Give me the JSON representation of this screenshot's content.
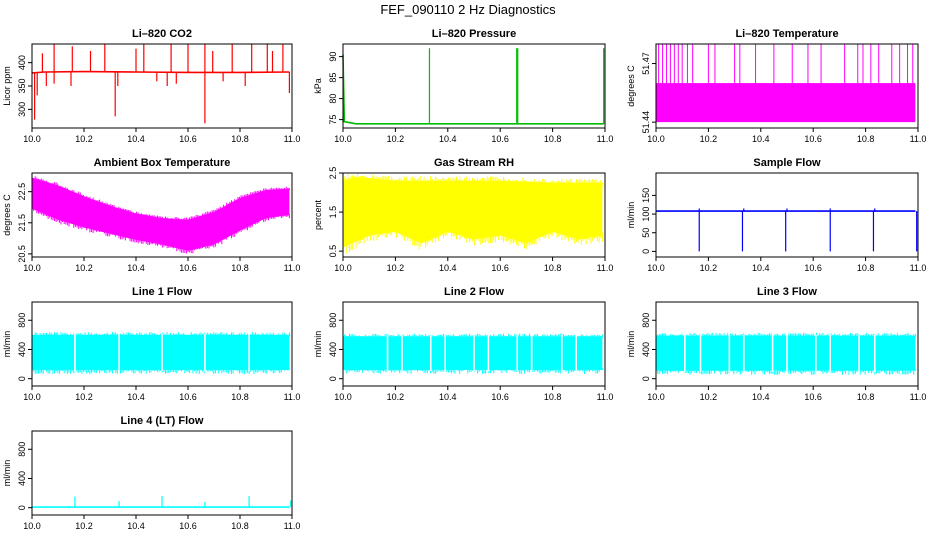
{
  "page": {
    "title": "FEF_090110  2 Hz Diagnostics"
  },
  "chart_data": [
    {
      "type": "line",
      "title": "Li–820 CO2",
      "ylabel": "Licor ppm",
      "color": "#ff0000",
      "xlim": [
        10.0,
        11.0
      ],
      "ylim": [
        260,
        440
      ],
      "xticks": [
        "10.0",
        "10.2",
        "10.4",
        "10.6",
        "10.8",
        "11.0"
      ],
      "yticks": [
        "300",
        "350",
        "400"
      ],
      "ytick_values": [
        300,
        350,
        400
      ],
      "baseline": [
        [
          10.0,
          378
        ],
        [
          10.05,
          380
        ],
        [
          10.2,
          381
        ],
        [
          10.4,
          380
        ],
        [
          10.6,
          379
        ],
        [
          10.8,
          379
        ],
        [
          10.99,
          380
        ]
      ],
      "spikes_up": [
        [
          10.04,
          420
        ],
        [
          10.085,
          440
        ],
        [
          10.155,
          435
        ],
        [
          10.225,
          425
        ],
        [
          10.28,
          440
        ],
        [
          10.4,
          430
        ],
        [
          10.43,
          440
        ],
        [
          10.535,
          440
        ],
        [
          10.6,
          440
        ],
        [
          10.665,
          440
        ],
        [
          10.695,
          425
        ],
        [
          10.77,
          440
        ],
        [
          10.845,
          440
        ],
        [
          10.905,
          440
        ],
        [
          10.925,
          425
        ],
        [
          10.965,
          440
        ]
      ],
      "spikes_down": [
        [
          10.01,
          278
        ],
        [
          10.02,
          330
        ],
        [
          10.055,
          350
        ],
        [
          10.085,
          355
        ],
        [
          10.15,
          350
        ],
        [
          10.32,
          285
        ],
        [
          10.33,
          350
        ],
        [
          10.48,
          360
        ],
        [
          10.52,
          350
        ],
        [
          10.555,
          355
        ],
        [
          10.665,
          270
        ],
        [
          10.735,
          360
        ],
        [
          10.82,
          350
        ],
        [
          10.99,
          335
        ]
      ]
    },
    {
      "type": "line",
      "title": "Li–820 Pressure",
      "ylabel": "kPa",
      "color": "#00bb00",
      "xlim": [
        10.0,
        11.0
      ],
      "ylim": [
        73,
        93
      ],
      "xticks": [
        "10.0",
        "10.2",
        "10.4",
        "10.6",
        "10.8",
        "11.0"
      ],
      "yticks": [
        "75",
        "80",
        "85",
        "90"
      ],
      "ytick_values": [
        75,
        80,
        85,
        90
      ],
      "baseline": [
        [
          10.0,
          90.5
        ],
        [
          10.005,
          74.5
        ],
        [
          10.05,
          74.0
        ],
        [
          10.2,
          74.0
        ],
        [
          10.33,
          74.0
        ],
        [
          10.5,
          74.0
        ],
        [
          10.665,
          74.0
        ],
        [
          10.8,
          74.0
        ],
        [
          10.995,
          74.0
        ]
      ],
      "spikes_up": [
        [
          10.33,
          92
        ],
        [
          10.663,
          92
        ],
        [
          10.667,
          92
        ],
        [
          10.995,
          92
        ]
      ],
      "spikes_down": []
    },
    {
      "type": "bar",
      "title": "Li–820 Temperature",
      "ylabel": "degrees C",
      "color": "#ff00ff",
      "xlim": [
        10.0,
        11.0
      ],
      "ylim": [
        51.437,
        51.48
      ],
      "xticks": [
        "10.0",
        "10.2",
        "10.4",
        "10.6",
        "10.8",
        "11.0"
      ],
      "yticks": [
        "51.44",
        "51.47"
      ],
      "ytick_values": [
        51.44,
        51.47
      ],
      "band": [
        51.44,
        51.46
      ],
      "spikes_up": [
        [
          10.01,
          51.48
        ],
        [
          10.025,
          51.48
        ],
        [
          10.04,
          51.48
        ],
        [
          10.055,
          51.48
        ],
        [
          10.07,
          51.48
        ],
        [
          10.085,
          51.48
        ],
        [
          10.1,
          51.48
        ],
        [
          10.12,
          51.48
        ],
        [
          10.14,
          51.48
        ],
        [
          10.2,
          51.48
        ],
        [
          10.225,
          51.48
        ],
        [
          10.3,
          51.48
        ],
        [
          10.32,
          51.48
        ],
        [
          10.38,
          51.48
        ],
        [
          10.45,
          51.48
        ],
        [
          10.52,
          51.48
        ],
        [
          10.58,
          51.48
        ],
        [
          10.63,
          51.48
        ],
        [
          10.72,
          51.48
        ],
        [
          10.77,
          51.48
        ],
        [
          10.79,
          51.48
        ],
        [
          10.82,
          51.48
        ],
        [
          10.85,
          51.48
        ],
        [
          10.9,
          51.48
        ],
        [
          10.93,
          51.48
        ],
        [
          10.96,
          51.48
        ],
        [
          10.98,
          51.48
        ]
      ],
      "spikes_down": []
    },
    {
      "type": "area",
      "title": "Ambient Box Temperature",
      "ylabel": "degrees C",
      "color": "#ff00ff",
      "xlim": [
        10.0,
        11.0
      ],
      "ylim": [
        20.4,
        23.1
      ],
      "xticks": [
        "10.0",
        "10.2",
        "10.4",
        "10.6",
        "10.8",
        "11.0"
      ],
      "yticks": [
        "20.5",
        "21.5",
        "22.5"
      ],
      "ytick_values": [
        20.5,
        21.5,
        22.5
      ],
      "upper": [
        [
          10.0,
          22.95
        ],
        [
          10.1,
          22.7
        ],
        [
          10.2,
          22.35
        ],
        [
          10.3,
          22.05
        ],
        [
          10.4,
          21.8
        ],
        [
          10.5,
          21.65
        ],
        [
          10.6,
          21.6
        ],
        [
          10.7,
          21.85
        ],
        [
          10.8,
          22.3
        ],
        [
          10.9,
          22.55
        ],
        [
          10.99,
          22.6
        ]
      ],
      "lower": [
        [
          10.0,
          21.95
        ],
        [
          10.1,
          21.6
        ],
        [
          10.2,
          21.35
        ],
        [
          10.3,
          21.15
        ],
        [
          10.4,
          20.95
        ],
        [
          10.5,
          20.8
        ],
        [
          10.6,
          20.6
        ],
        [
          10.7,
          20.8
        ],
        [
          10.8,
          21.25
        ],
        [
          10.9,
          21.65
        ],
        [
          10.99,
          21.75
        ]
      ]
    },
    {
      "type": "area",
      "title": "Gas Stream RH",
      "ylabel": "percent",
      "color": "#ffff00",
      "xlim": [
        10.0,
        11.0
      ],
      "ylim": [
        0.35,
        2.5
      ],
      "xticks": [
        "10.0",
        "10.2",
        "10.4",
        "10.6",
        "10.8",
        "11.0"
      ],
      "yticks": [
        "0.5",
        "1.5",
        "2.5"
      ],
      "ytick_values": [
        0.5,
        1.5,
        2.5
      ],
      "upper": [
        [
          10.0,
          2.3
        ],
        [
          10.05,
          2.4
        ],
        [
          10.2,
          2.3
        ],
        [
          10.4,
          2.3
        ],
        [
          10.6,
          2.3
        ],
        [
          10.8,
          2.25
        ],
        [
          10.99,
          2.25
        ]
      ],
      "lower": [
        [
          10.0,
          0.6
        ],
        [
          10.1,
          0.9
        ],
        [
          10.2,
          1.0
        ],
        [
          10.3,
          0.7
        ],
        [
          10.4,
          1.0
        ],
        [
          10.5,
          0.8
        ],
        [
          10.6,
          0.9
        ],
        [
          10.7,
          0.7
        ],
        [
          10.8,
          1.0
        ],
        [
          10.9,
          0.8
        ],
        [
          10.99,
          0.9
        ]
      ]
    },
    {
      "type": "line",
      "title": "Sample Flow",
      "ylabel": "ml/min",
      "color": "#0000ff",
      "xlim": [
        10.0,
        11.0
      ],
      "ylim": [
        -15,
        210
      ],
      "xticks": [
        "10.0",
        "10.2",
        "10.4",
        "10.6",
        "10.8",
        "11.0"
      ],
      "yticks": [
        "0",
        "50",
        "100",
        "150"
      ],
      "ytick_values": [
        0,
        50,
        100,
        150
      ],
      "baseline": [
        [
          10.0,
          108
        ],
        [
          10.2,
          108
        ],
        [
          10.5,
          108
        ],
        [
          10.8,
          108
        ],
        [
          10.99,
          108
        ]
      ],
      "spikes_up": [
        [
          10.165,
          115
        ],
        [
          10.335,
          115
        ],
        [
          10.5,
          115
        ],
        [
          10.665,
          115
        ],
        [
          10.835,
          115
        ]
      ],
      "spikes_down": [
        [
          10.165,
          0
        ],
        [
          10.33,
          0
        ],
        [
          10.495,
          0
        ],
        [
          10.665,
          0
        ],
        [
          10.83,
          0
        ],
        [
          10.995,
          0
        ]
      ]
    },
    {
      "type": "area",
      "title": "Line 1 Flow",
      "ylabel": "ml/min",
      "color": "#00ffff",
      "xlim": [
        10.0,
        11.0
      ],
      "ylim": [
        -100,
        1050
      ],
      "xticks": [
        "10.0",
        "10.2",
        "10.4",
        "10.6",
        "10.8",
        "11.0"
      ],
      "yticks": [
        "0",
        "400",
        "800"
      ],
      "ytick_values": [
        0,
        400,
        800
      ],
      "upper": [
        [
          10.0,
          600
        ],
        [
          10.99,
          600
        ]
      ],
      "lower": [
        [
          10.0,
          120
        ],
        [
          10.99,
          120
        ]
      ],
      "gaps": [
        10.165,
        10.335,
        10.5,
        10.665,
        10.835
      ]
    },
    {
      "type": "area",
      "title": "Line 2 Flow",
      "ylabel": "ml/min",
      "color": "#00ffff",
      "xlim": [
        10.0,
        11.0
      ],
      "ylim": [
        -100,
        1050
      ],
      "xticks": [
        "10.0",
        "10.2",
        "10.4",
        "10.6",
        "10.8",
        "11.0"
      ],
      "yticks": [
        "0",
        "400",
        "800"
      ],
      "ytick_values": [
        0,
        400,
        800
      ],
      "upper": [
        [
          10.0,
          580
        ],
        [
          10.99,
          580
        ]
      ],
      "lower": [
        [
          10.0,
          120
        ],
        [
          10.99,
          120
        ]
      ],
      "gaps": [
        10.17,
        10.225,
        10.335,
        10.39,
        10.5,
        10.555,
        10.665,
        10.72,
        10.835,
        10.89
      ]
    },
    {
      "type": "area",
      "title": "Line 3 Flow",
      "ylabel": "ml/min",
      "color": "#00ffff",
      "xlim": [
        10.0,
        11.0
      ],
      "ylim": [
        -100,
        1050
      ],
      "xticks": [
        "10.0",
        "10.2",
        "10.4",
        "10.6",
        "10.8",
        "11.0"
      ],
      "yticks": [
        "0",
        "400",
        "800"
      ],
      "ytick_values": [
        0,
        400,
        800
      ],
      "upper": [
        [
          10.0,
          590
        ],
        [
          10.99,
          590
        ]
      ],
      "lower": [
        [
          10.0,
          110
        ],
        [
          10.99,
          110
        ]
      ],
      "gaps": [
        10.11,
        10.17,
        10.28,
        10.335,
        10.445,
        10.5,
        10.61,
        10.665,
        10.775,
        10.835
      ]
    },
    {
      "type": "line",
      "title": "Line 4 (LT) Flow",
      "ylabel": "ml/min",
      "color": "#00ffff",
      "xlim": [
        10.0,
        11.0
      ],
      "ylim": [
        -100,
        1050
      ],
      "xticks": [
        "10.0",
        "10.2",
        "10.4",
        "10.6",
        "10.8",
        "11.0"
      ],
      "yticks": [
        "0",
        "400",
        "800"
      ],
      "ytick_values": [
        0,
        400,
        800
      ],
      "baseline": [
        [
          10.0,
          8
        ],
        [
          10.5,
          8
        ],
        [
          10.99,
          8
        ]
      ],
      "spikes_up": [
        [
          10.165,
          150
        ],
        [
          10.335,
          90
        ],
        [
          10.5,
          160
        ],
        [
          10.665,
          80
        ],
        [
          10.835,
          160
        ],
        [
          10.995,
          100
        ]
      ],
      "spikes_down": []
    }
  ]
}
